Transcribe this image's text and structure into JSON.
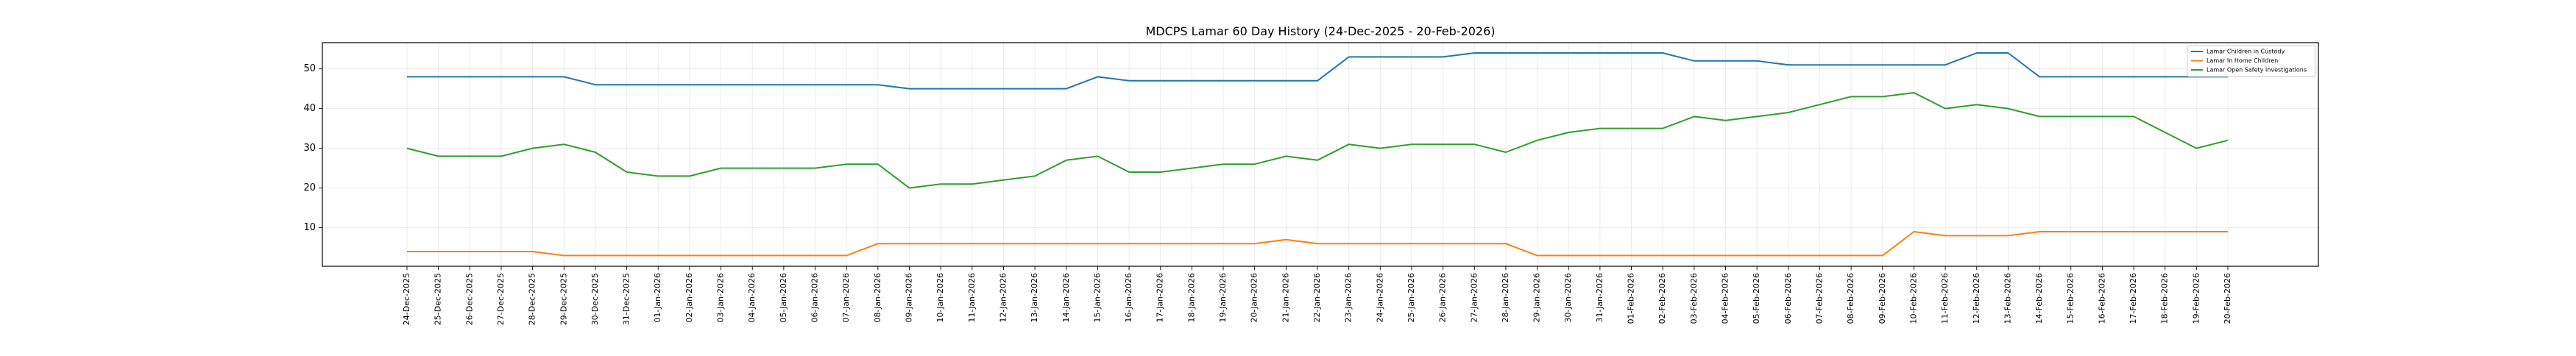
{
  "chart_data": {
    "type": "line",
    "title": "MDCPS Lamar 60 Day History (24-Dec-2025 - 20-Feb-2026)",
    "xlabel": "",
    "ylabel": "",
    "ylim": [
      0.3,
      56.6
    ],
    "yticks": [
      10,
      20,
      30,
      40,
      50
    ],
    "grid": true,
    "legend_position": "top-right",
    "categories": [
      "24-Dec-2025",
      "25-Dec-2025",
      "26-Dec-2025",
      "27-Dec-2025",
      "28-Dec-2025",
      "29-Dec-2025",
      "30-Dec-2025",
      "31-Dec-2025",
      "01-Jan-2026",
      "02-Jan-2026",
      "03-Jan-2026",
      "04-Jan-2026",
      "05-Jan-2026",
      "06-Jan-2026",
      "07-Jan-2026",
      "08-Jan-2026",
      "09-Jan-2026",
      "10-Jan-2026",
      "11-Jan-2026",
      "12-Jan-2026",
      "13-Jan-2026",
      "14-Jan-2026",
      "15-Jan-2026",
      "16-Jan-2026",
      "17-Jan-2026",
      "18-Jan-2026",
      "19-Jan-2026",
      "20-Jan-2026",
      "21-Jan-2026",
      "22-Jan-2026",
      "23-Jan-2026",
      "24-Jan-2026",
      "25-Jan-2026",
      "26-Jan-2026",
      "27-Jan-2026",
      "28-Jan-2026",
      "29-Jan-2026",
      "30-Jan-2026",
      "31-Jan-2026",
      "01-Feb-2026",
      "02-Feb-2026",
      "03-Feb-2026",
      "04-Feb-2026",
      "05-Feb-2026",
      "06-Feb-2026",
      "07-Feb-2026",
      "08-Feb-2026",
      "09-Feb-2026",
      "10-Feb-2026",
      "11-Feb-2026",
      "12-Feb-2026",
      "13-Feb-2026",
      "14-Feb-2026",
      "15-Feb-2026",
      "16-Feb-2026",
      "17-Feb-2026",
      "18-Feb-2026",
      "19-Feb-2026",
      "20-Feb-2026"
    ],
    "series": [
      {
        "name": "Lamar Children in Custody",
        "color": "#1f77b4",
        "values": [
          48,
          48,
          48,
          48,
          48,
          48,
          46,
          46,
          46,
          46,
          46,
          46,
          46,
          46,
          46,
          46,
          45,
          45,
          45,
          45,
          45,
          45,
          48,
          47,
          47,
          47,
          47,
          47,
          47,
          47,
          53,
          53,
          53,
          53,
          54,
          54,
          54,
          54,
          54,
          54,
          54,
          52,
          52,
          52,
          51,
          51,
          51,
          51,
          51,
          51,
          54,
          54,
          48,
          48,
          48,
          48,
          48,
          48,
          48
        ]
      },
      {
        "name": "Lamar In Home Children",
        "color": "#ff7f0e",
        "values": [
          4,
          4,
          4,
          4,
          4,
          3,
          3,
          3,
          3,
          3,
          3,
          3,
          3,
          3,
          3,
          6,
          6,
          6,
          6,
          6,
          6,
          6,
          6,
          6,
          6,
          6,
          6,
          6,
          7,
          6,
          6,
          6,
          6,
          6,
          6,
          6,
          3,
          3,
          3,
          3,
          3,
          3,
          3,
          3,
          3,
          3,
          3,
          3,
          9,
          8,
          8,
          8,
          9,
          9,
          9,
          9,
          9,
          9,
          9
        ]
      },
      {
        "name": "Lamar Open Safety Investigations",
        "color": "#2ca02c",
        "values": [
          30,
          28,
          28,
          28,
          30,
          31,
          29,
          24,
          23,
          23,
          25,
          25,
          25,
          25,
          26,
          26,
          20,
          21,
          21,
          22,
          23,
          27,
          28,
          24,
          24,
          25,
          26,
          26,
          28,
          27,
          31,
          30,
          31,
          31,
          31,
          29,
          32,
          34,
          35,
          35,
          35,
          38,
          37,
          38,
          39,
          41,
          43,
          43,
          44,
          40,
          41,
          40,
          38,
          38,
          38,
          38,
          34,
          30,
          32
        ]
      }
    ]
  }
}
